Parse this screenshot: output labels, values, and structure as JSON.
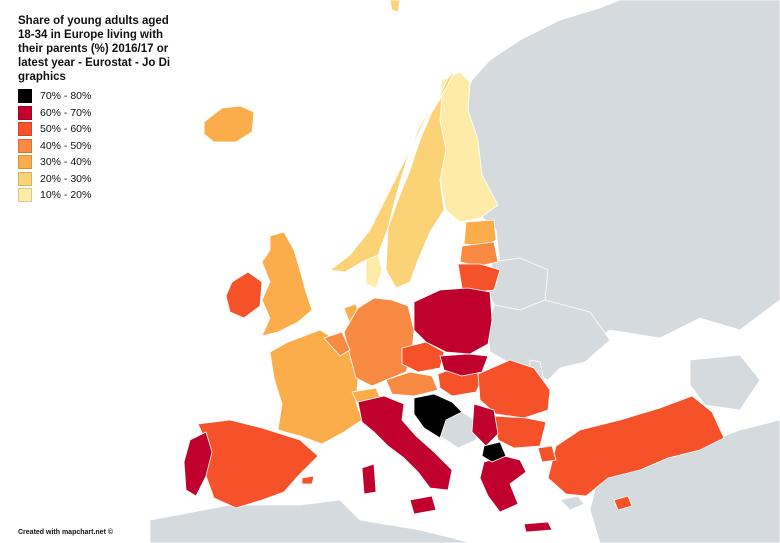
{
  "title": "Share of young adults aged 18-34 in Europe living with their parents (%) 2016/17 or latest year - Eurostat - Jo Di graphics",
  "legend": [
    {
      "label": "70% - 80%",
      "color": "#000000"
    },
    {
      "label": "60% - 70%",
      "color": "#c0012e"
    },
    {
      "label": "50% - 60%",
      "color": "#f65229"
    },
    {
      "label": "40% - 50%",
      "color": "#f88a43"
    },
    {
      "label": "30% - 40%",
      "color": "#fbad4c"
    },
    {
      "label": "20% - 30%",
      "color": "#fcd277"
    },
    {
      "label": "10% - 20%",
      "color": "#fdeba7"
    }
  ],
  "credit": "Created with mapchart.net ©",
  "colors": {
    "outside": "#d4dadd",
    "sea": "#ffffff",
    "border": "#ffffff"
  }
}
